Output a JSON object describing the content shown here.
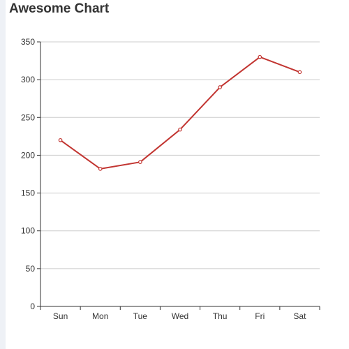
{
  "chart_data": {
    "type": "line",
    "title": "Awesome Chart",
    "categories": [
      "Sun",
      "Mon",
      "Tue",
      "Wed",
      "Thu",
      "Fri",
      "Sat"
    ],
    "series": [
      {
        "values": [
          220,
          182,
          191,
          234,
          290,
          330,
          310
        ]
      }
    ],
    "ylim": [
      0,
      350
    ],
    "yticks": [
      "0",
      "50",
      "100",
      "150",
      "200",
      "250",
      "300",
      "350"
    ],
    "grid": true,
    "line_color": "#c23531",
    "grid_color": "#cccccc",
    "axis_color": "#333333"
  }
}
